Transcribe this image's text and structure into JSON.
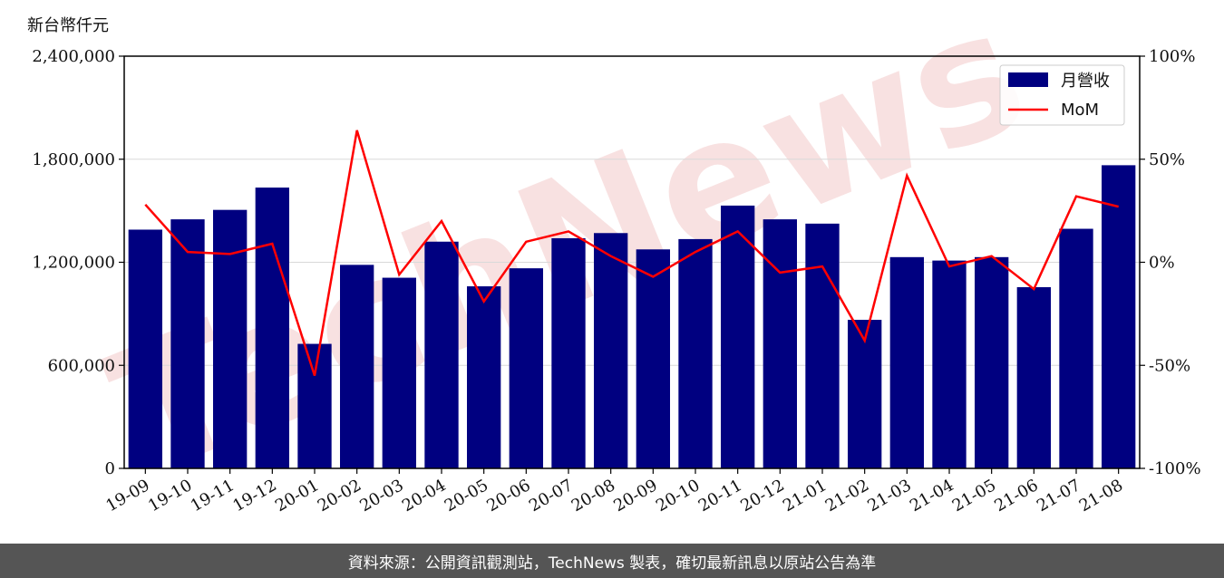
{
  "chart_data": {
    "type": "bar",
    "unit_label": "新台幣仟元",
    "categories": [
      "19-09",
      "19-10",
      "19-11",
      "19-12",
      "20-01",
      "20-02",
      "20-03",
      "20-04",
      "20-05",
      "20-06",
      "20-07",
      "20-08",
      "20-09",
      "20-10",
      "20-11",
      "20-12",
      "21-01",
      "21-02",
      "21-03",
      "21-04",
      "21-05",
      "21-06",
      "21-07",
      "21-08"
    ],
    "series": [
      {
        "name": "月營收",
        "axis": "left",
        "kind": "bar",
        "color": "#000080",
        "values": [
          1390000,
          1450000,
          1505000,
          1635000,
          725000,
          1185000,
          1110000,
          1320000,
          1060000,
          1165000,
          1340000,
          1370000,
          1275000,
          1335000,
          1530000,
          1450000,
          1425000,
          865000,
          1230000,
          1210000,
          1230000,
          1055000,
          1395000,
          1765000
        ]
      },
      {
        "name": "MoM",
        "axis": "right",
        "kind": "line",
        "color": "#ff0000",
        "values": [
          28,
          5,
          4,
          9,
          -55,
          64,
          -6,
          20,
          -19,
          10,
          15,
          3,
          -7,
          5,
          15,
          -5,
          -2,
          -38,
          42,
          -2,
          3,
          -13,
          32,
          27
        ]
      }
    ],
    "left_axis": {
      "ylim": [
        0,
        2400000
      ],
      "ticks": [
        "0",
        "600,000",
        "1,200,000",
        "1,800,000",
        "2,400,000"
      ]
    },
    "right_axis": {
      "ylim": [
        -100,
        100
      ],
      "ticks": [
        "-100%",
        "-50%",
        "0%",
        "50%",
        "100%"
      ]
    },
    "grid": true,
    "legend_position": "top-right"
  },
  "watermark": "TechNews",
  "footer": "資料來源：公開資訊觀測站，TechNews 製表，確切最新訊息以原站公告為準"
}
